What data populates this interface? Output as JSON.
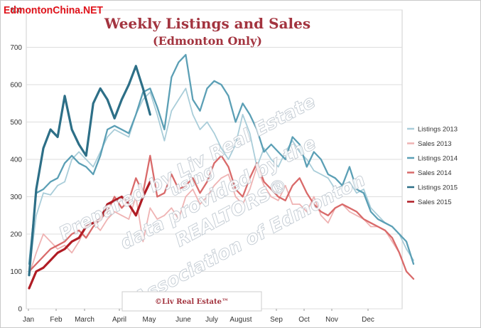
{
  "brand": {
    "logo_text": "EdmontonChina.NET"
  },
  "chart_data": {
    "type": "line",
    "title": "Weekly Listings and Sales",
    "subtitle": "(Edmonton Only)",
    "ylim": [
      0,
      800
    ],
    "yticks": [
      0,
      100,
      200,
      300,
      400,
      500,
      600,
      700,
      800
    ],
    "grid": true,
    "legend_position": "right",
    "x_tick_labels": [
      "Jan",
      "Feb",
      "March",
      "April",
      "May",
      "June",
      "July",
      "August",
      "Sep",
      "Oct",
      "Nov",
      "Dec"
    ],
    "series": [
      {
        "name": "Listings 2013",
        "color": "#a9cdd9",
        "values": [
          100,
          250,
          310,
          305,
          330,
          340,
          400,
          420,
          400,
          380,
          420,
          460,
          480,
          470,
          460,
          520,
          560,
          580,
          520,
          450,
          530,
          560,
          590,
          520,
          480,
          500,
          470,
          430,
          400,
          440,
          520,
          470,
          380,
          430,
          400,
          380,
          420,
          450,
          420,
          400,
          370,
          360,
          350,
          320,
          330,
          340,
          310,
          320,
          270,
          250,
          230,
          220,
          200,
          160,
          130
        ]
      },
      {
        "name": "Sales 2013",
        "color": "#efb3b3",
        "values": [
          90,
          150,
          200,
          180,
          160,
          170,
          150,
          180,
          220,
          230,
          210,
          240,
          260,
          250,
          240,
          300,
          180,
          270,
          240,
          250,
          270,
          240,
          300,
          320,
          280,
          300,
          330,
          350,
          360,
          300,
          280,
          320,
          380,
          330,
          300,
          290,
          330,
          280,
          280,
          260,
          300,
          250,
          230,
          270,
          280,
          260,
          250,
          240,
          220,
          220,
          210,
          180,
          150,
          100,
          80
        ]
      },
      {
        "name": "Listings 2014",
        "color": "#5b9fb5",
        "values": [
          120,
          310,
          320,
          340,
          350,
          390,
          410,
          390,
          380,
          360,
          410,
          480,
          490,
          480,
          470,
          520,
          580,
          590,
          540,
          480,
          620,
          660,
          680,
          560,
          530,
          590,
          610,
          600,
          570,
          500,
          550,
          520,
          480,
          420,
          440,
          420,
          400,
          460,
          440,
          380,
          420,
          400,
          360,
          350,
          330,
          380,
          320,
          310,
          260,
          240,
          230,
          220,
          200,
          180,
          120
        ]
      },
      {
        "name": "Sales 2014",
        "color": "#d96a6a",
        "values": [
          100,
          120,
          140,
          160,
          170,
          180,
          200,
          210,
          190,
          220,
          240,
          260,
          300,
          270,
          290,
          350,
          310,
          410,
          300,
          310,
          360,
          320,
          330,
          350,
          310,
          340,
          390,
          410,
          380,
          320,
          300,
          350,
          390,
          340,
          320,
          300,
          290,
          330,
          350,
          310,
          280,
          260,
          250,
          270,
          280,
          270,
          260,
          240,
          230,
          220,
          210,
          190,
          150,
          100,
          80
        ]
      },
      {
        "name": "Listings 2015",
        "color": "#2d6f87",
        "values": [
          90,
          320,
          430,
          480,
          460,
          570,
          480,
          440,
          410,
          550,
          590,
          560,
          510,
          560,
          600,
          650,
          590,
          520
        ]
      },
      {
        "name": "Sales 2015",
        "color": "#b01c24",
        "values": [
          55,
          100,
          110,
          130,
          150,
          160,
          180,
          190,
          220,
          230,
          240,
          280,
          290,
          300,
          280,
          250,
          300,
          340
        ]
      }
    ]
  },
  "watermark": {
    "lines": [
      "Prepared by Liv Real Estate",
      "using",
      "data provided by the",
      "REALTORS®",
      "Association of Edmonton"
    ]
  },
  "footer": {
    "copyright": "©Liv Real Estate™"
  }
}
